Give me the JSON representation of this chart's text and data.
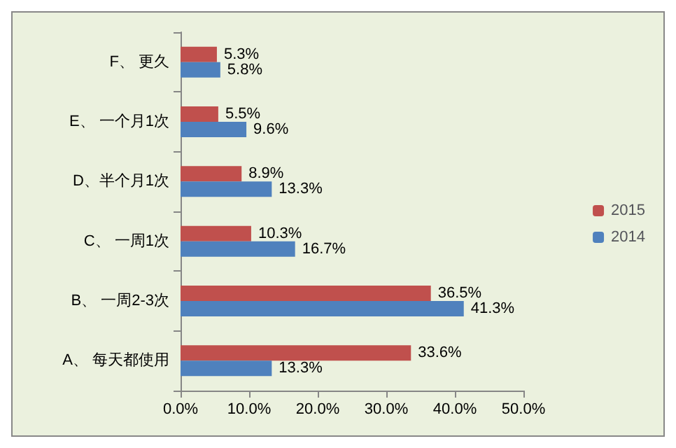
{
  "chart_data": {
    "type": "bar",
    "orientation": "horizontal",
    "categories": [
      "F、 更久",
      "E、 一个月1次",
      "D、半个月1次",
      "C、 一周1次",
      "B、 一周2-3次",
      "A、 每天都使用"
    ],
    "series": [
      {
        "name": "2015",
        "color": "#c0504d",
        "values": [
          5.3,
          5.5,
          8.9,
          10.3,
          36.5,
          33.6
        ],
        "value_labels": [
          "5.3%",
          "5.5%",
          "8.9%",
          "10.3%",
          "36.5%",
          "33.6%"
        ]
      },
      {
        "name": "2014",
        "color": "#4f81bd",
        "values": [
          5.8,
          9.6,
          13.3,
          16.7,
          41.3,
          13.3
        ],
        "value_labels": [
          "5.8%",
          "9.6%",
          "13.3%",
          "16.7%",
          "41.3%",
          "13.3%"
        ]
      }
    ],
    "xlim": [
      0,
      50
    ],
    "xticks": [
      {
        "value": 0,
        "label": "0.0%"
      },
      {
        "value": 10,
        "label": "10.0%"
      },
      {
        "value": 20,
        "label": "20.0%"
      },
      {
        "value": 30,
        "label": "30.0%"
      },
      {
        "value": 40,
        "label": "40.0%"
      },
      {
        "value": 50,
        "label": "50.0%"
      }
    ],
    "legend": "right",
    "grid": false
  }
}
